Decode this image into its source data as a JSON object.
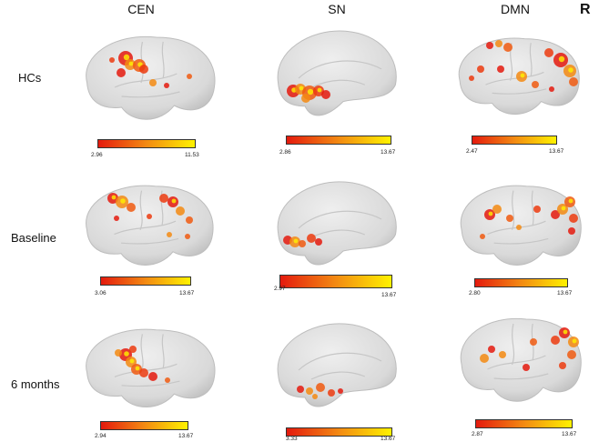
{
  "columns": [
    "CEN",
    "SN",
    "DMN"
  ],
  "side_marker": "R",
  "rows": [
    {
      "label": "HCs",
      "scales": [
        {
          "min": "2.96",
          "max": "11.53"
        },
        {
          "min": "2.86",
          "max": "13.67"
        },
        {
          "min": "2.47",
          "max": "13.67"
        }
      ]
    },
    {
      "label": "Baseline",
      "scales": [
        {
          "min": "3.06",
          "max": "13.67"
        },
        {
          "min": "2.97",
          "max": "13.67"
        },
        {
          "min": "2.80",
          "max": "13.67"
        }
      ]
    },
    {
      "label": "6 months",
      "scales": [
        {
          "min": "2.94",
          "max": "13.67"
        },
        {
          "min": "3.33",
          "max": "13.67"
        },
        {
          "min": "2.87",
          "max": "13.67"
        }
      ]
    }
  ],
  "colormap": {
    "low": "#e41a0e",
    "mid": "#f38a12",
    "high": "#fff200"
  },
  "brain_color": "#d9d9d9"
}
